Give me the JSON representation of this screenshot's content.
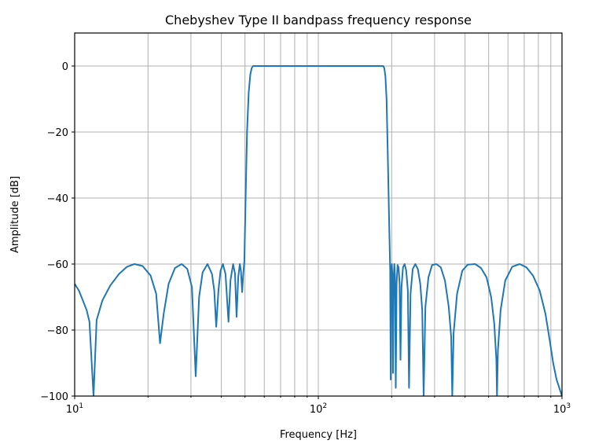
{
  "chart_data": {
    "type": "line",
    "title": "Chebyshev Type II bandpass frequency response",
    "xlabel": "Frequency [Hz]",
    "ylabel": "Amplitude [dB]",
    "xscale": "log",
    "xlim": [
      10,
      1000
    ],
    "ylim": [
      -100,
      10
    ],
    "grid": true,
    "grid_which": "both",
    "x_ticks": [
      {
        "value": 10,
        "base": "10",
        "exp": "1"
      },
      {
        "value": 100,
        "base": "10",
        "exp": "2"
      },
      {
        "value": 1000,
        "base": "10",
        "exp": "3"
      }
    ],
    "y_ticks": [
      {
        "value": 0,
        "label": "0"
      },
      {
        "value": -20,
        "label": "−20"
      },
      {
        "value": -40,
        "label": "−40"
      },
      {
        "value": -60,
        "label": "−60"
      },
      {
        "value": -80,
        "label": "−80"
      },
      {
        "value": -100,
        "label": "−100"
      }
    ],
    "series": [
      {
        "name": "Amplitude",
        "color": "#1f77b4",
        "points": [
          [
            10,
            -66
          ],
          [
            10.4,
            -68
          ],
          [
            10.8,
            -71
          ],
          [
            11.2,
            -74
          ],
          [
            11.5,
            -77.5
          ],
          [
            11.95,
            -100
          ],
          [
            12.3,
            -77
          ],
          [
            13,
            -71
          ],
          [
            14,
            -66.5
          ],
          [
            15.2,
            -63
          ],
          [
            16.4,
            -60.8
          ],
          [
            17.6,
            -60
          ],
          [
            19,
            -60.6
          ],
          [
            20.5,
            -63.5
          ],
          [
            21.6,
            -69
          ],
          [
            22.4,
            -84
          ],
          [
            23.2,
            -75
          ],
          [
            24.3,
            -66
          ],
          [
            25.8,
            -61.2
          ],
          [
            27.5,
            -60
          ],
          [
            29,
            -61.5
          ],
          [
            30.3,
            -67
          ],
          [
            31.4,
            -94
          ],
          [
            32.4,
            -70
          ],
          [
            33.5,
            -62.5
          ],
          [
            35.1,
            -60
          ],
          [
            36.6,
            -63
          ],
          [
            37.4,
            -68
          ],
          [
            38.1,
            -79
          ],
          [
            38.9,
            -68
          ],
          [
            39.7,
            -62
          ],
          [
            40.6,
            -60
          ],
          [
            41.6,
            -63
          ],
          [
            42.8,
            -77.5
          ],
          [
            43.6,
            -65
          ],
          [
            44.7,
            -60
          ],
          [
            45.5,
            -63
          ],
          [
            46.2,
            -76
          ],
          [
            46.9,
            -64
          ],
          [
            47.6,
            -60
          ],
          [
            48.1,
            -62
          ],
          [
            48.7,
            -68.5
          ],
          [
            49.2,
            -63
          ],
          [
            49.7,
            -59
          ],
          [
            50.3,
            -40
          ],
          [
            51,
            -20
          ],
          [
            51.8,
            -8
          ],
          [
            52.6,
            -2.5
          ],
          [
            53.3,
            -0.6
          ],
          [
            54,
            0
          ],
          [
            100,
            0
          ],
          [
            150,
            0
          ],
          [
            184.5,
            0
          ],
          [
            186.5,
            -0.6
          ],
          [
            188.5,
            -3
          ],
          [
            190.5,
            -10
          ],
          [
            192.5,
            -25
          ],
          [
            195,
            -45
          ],
          [
            197.2,
            -62
          ],
          [
            198.2,
            -95
          ],
          [
            199.2,
            -62
          ],
          [
            200.3,
            -60
          ],
          [
            201.4,
            -64
          ],
          [
            202.5,
            -93
          ],
          [
            203.8,
            -64
          ],
          [
            205.1,
            -60
          ],
          [
            206.5,
            -64
          ],
          [
            207.8,
            -97.5
          ],
          [
            209.5,
            -66
          ],
          [
            211.5,
            -60.3
          ],
          [
            213.5,
            -61
          ],
          [
            215.5,
            -66
          ],
          [
            217.3,
            -89
          ],
          [
            219.5,
            -67
          ],
          [
            222.5,
            -61
          ],
          [
            226,
            -60
          ],
          [
            229.5,
            -62
          ],
          [
            233,
            -68
          ],
          [
            235.6,
            -97.5
          ],
          [
            239,
            -69
          ],
          [
            244,
            -61.5
          ],
          [
            250,
            -60
          ],
          [
            256,
            -61.5
          ],
          [
            262,
            -66
          ],
          [
            267,
            -74
          ],
          [
            270.6,
            -100
          ],
          [
            275,
            -73
          ],
          [
            283,
            -64
          ],
          [
            293,
            -60.3
          ],
          [
            305,
            -60
          ],
          [
            318,
            -61
          ],
          [
            331,
            -65
          ],
          [
            343,
            -73
          ],
          [
            351,
            -82
          ],
          [
            354.5,
            -100
          ],
          [
            359,
            -81
          ],
          [
            371,
            -69
          ],
          [
            390,
            -62
          ],
          [
            410,
            -60.2
          ],
          [
            440,
            -60
          ],
          [
            465,
            -61.2
          ],
          [
            490,
            -64
          ],
          [
            512,
            -70
          ],
          [
            527,
            -78
          ],
          [
            538,
            -89
          ],
          [
            541,
            -100
          ],
          [
            546,
            -86
          ],
          [
            560,
            -74
          ],
          [
            585,
            -65
          ],
          [
            625,
            -60.8
          ],
          [
            670,
            -60
          ],
          [
            715,
            -61
          ],
          [
            760,
            -63.5
          ],
          [
            810,
            -68
          ],
          [
            855,
            -75
          ],
          [
            890,
            -83
          ],
          [
            920,
            -90
          ],
          [
            950,
            -95
          ],
          [
            1000,
            -100
          ]
        ]
      }
    ]
  }
}
